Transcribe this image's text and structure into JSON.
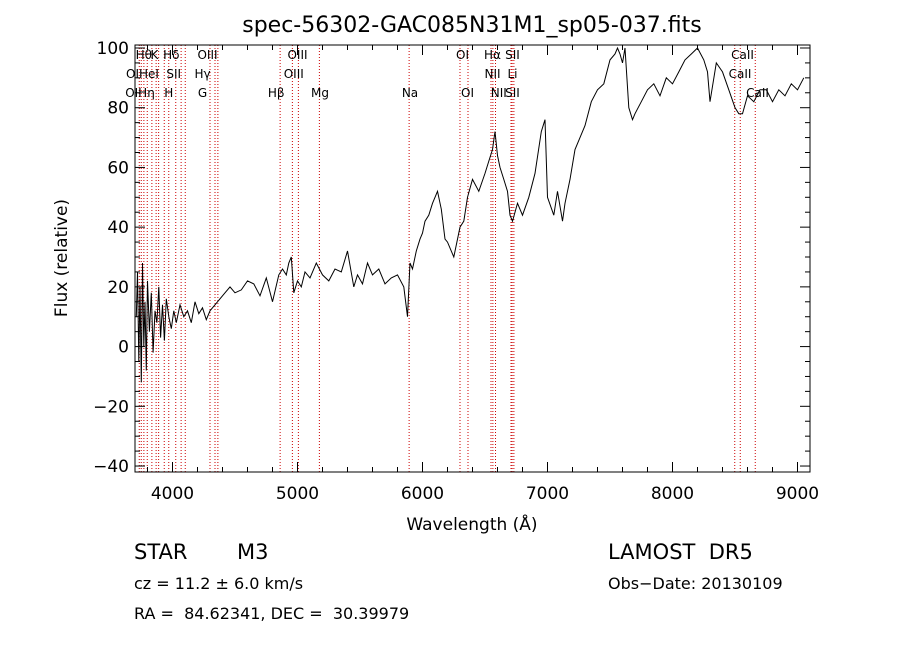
{
  "chart_data": {
    "type": "line",
    "title": "spec-56302-GAC085N31M1_sp05-037.fits",
    "xlabel": "Wavelength (Å)",
    "ylabel": "Flux (relative)",
    "xlim": [
      3700,
      9100
    ],
    "ylim": [
      -42,
      101
    ],
    "xticks": [
      4000,
      5000,
      6000,
      7000,
      8000,
      9000
    ],
    "yticks": [
      -40,
      -20,
      0,
      20,
      40,
      60,
      80,
      100
    ],
    "grid": false,
    "line_color": "#000000",
    "marker_color": "#cc0000",
    "series": [
      {
        "x": [
          3710,
          3720,
          3730,
          3740,
          3750,
          3760,
          3770,
          3780,
          3790,
          3800,
          3815,
          3830,
          3845,
          3860,
          3875,
          3890,
          3905,
          3920,
          3935,
          3950,
          3970,
          3990,
          4010,
          4030,
          4060,
          4090,
          4120,
          4150,
          4180,
          4210,
          4240,
          4270,
          4300,
          4340,
          4380,
          4420,
          4460,
          4500,
          4550,
          4600,
          4650,
          4700,
          4750,
          4800,
          4850,
          4880,
          4910,
          4930,
          4950,
          4970,
          5000,
          5030,
          5060,
          5100,
          5150,
          5200,
          5250,
          5300,
          5350,
          5400,
          5450,
          5480,
          5520,
          5560,
          5600,
          5650,
          5700,
          5750,
          5800,
          5850,
          5880,
          5900,
          5920,
          5950,
          5980,
          6000,
          6020,
          6050,
          6080,
          6100,
          6120,
          6150,
          6180,
          6200,
          6250,
          6300,
          6330,
          6360,
          6400,
          6450,
          6500,
          6530,
          6560,
          6580,
          6600,
          6620,
          6650,
          6680,
          6700,
          6720,
          6760,
          6800,
          6850,
          6900,
          6950,
          6980,
          7000,
          7050,
          7080,
          7120,
          7140,
          7180,
          7220,
          7260,
          7300,
          7350,
          7400,
          7450,
          7500,
          7540,
          7560,
          7580,
          7600,
          7620,
          7650,
          7680,
          7700,
          7750,
          7800,
          7850,
          7900,
          7950,
          8000,
          8050,
          8100,
          8150,
          8200,
          8250,
          8280,
          8300,
          8350,
          8400,
          8450,
          8500,
          8530,
          8560,
          8600,
          8650,
          8700,
          8750,
          8800,
          8850,
          8900,
          8950,
          9000,
          9050
        ],
        "y": [
          10,
          25,
          -5,
          20,
          -12,
          28,
          0,
          15,
          -8,
          22,
          5,
          18,
          -2,
          12,
          8,
          20,
          3,
          14,
          2,
          16,
          10,
          6,
          12,
          8,
          14,
          10,
          12,
          8,
          15,
          11,
          13,
          9,
          12,
          14,
          16,
          18,
          20,
          18,
          19,
          22,
          21,
          17,
          23,
          15,
          24,
          26,
          24,
          28,
          30,
          18,
          22,
          20,
          25,
          23,
          28,
          24,
          22,
          26,
          25,
          32,
          20,
          24,
          21,
          28,
          24,
          26,
          21,
          23,
          24,
          20,
          10,
          28,
          26,
          32,
          36,
          38,
          42,
          44,
          48,
          50,
          52,
          46,
          36,
          35,
          30,
          40,
          42,
          50,
          56,
          52,
          58,
          62,
          66,
          72,
          64,
          60,
          56,
          52,
          44,
          42,
          48,
          44,
          50,
          58,
          72,
          76,
          50,
          44,
          52,
          42,
          48,
          56,
          66,
          70,
          74,
          82,
          86,
          88,
          96,
          98,
          100,
          98,
          95,
          100,
          80,
          76,
          78,
          82,
          86,
          88,
          84,
          90,
          88,
          92,
          96,
          98,
          100,
          96,
          92,
          82,
          95,
          92,
          86,
          80,
          78,
          78,
          84,
          82,
          86,
          86,
          82,
          86,
          84,
          88,
          86,
          90
        ]
      }
    ],
    "line_markers": [
      {
        "x": 3734,
        "label": "OII"
      },
      {
        "x": 3750,
        "label": "Hθ"
      },
      {
        "x": 3771,
        "label": "Hη"
      },
      {
        "x": 3798,
        "label": "Hζ"
      },
      {
        "x": 3835,
        "label": "Hη"
      },
      {
        "x": 3869,
        "label": "HeI"
      },
      {
        "x": 3889,
        "label": "Hζ"
      },
      {
        "x": 3934,
        "label": "K"
      },
      {
        "x": 3970,
        "label": "H"
      },
      {
        "x": 4026,
        "label": "HeI"
      },
      {
        "x": 4069,
        "label": "SII"
      },
      {
        "x": 4102,
        "label": "Hδ"
      },
      {
        "x": 4300,
        "label": "G"
      },
      {
        "x": 4340,
        "label": "Hγ"
      },
      {
        "x": 4363,
        "label": "OIII"
      },
      {
        "x": 4861,
        "label": "Hβ"
      },
      {
        "x": 4959,
        "label": "OIII"
      },
      {
        "x": 5007,
        "label": "OIII"
      },
      {
        "x": 5175,
        "label": "Mg"
      },
      {
        "x": 5893,
        "label": "Na"
      },
      {
        "x": 6300,
        "label": "OI"
      },
      {
        "x": 6364,
        "label": "OI"
      },
      {
        "x": 6548,
        "label": "NII"
      },
      {
        "x": 6563,
        "label": "Hα"
      },
      {
        "x": 6584,
        "label": "NII"
      },
      {
        "x": 6708,
        "label": "Li"
      },
      {
        "x": 6717,
        "label": "SII"
      },
      {
        "x": 6731,
        "label": "SII"
      },
      {
        "x": 8498,
        "label": "CaII"
      },
      {
        "x": 8542,
        "label": "CaII"
      },
      {
        "x": 8662,
        "label": "CaII"
      }
    ],
    "marker_labels": [
      {
        "x": 3770,
        "text": "Hθ"
      },
      {
        "x": 3855,
        "text": "K"
      },
      {
        "x": 3990,
        "text": "Hδ"
      },
      {
        "x": 4280,
        "text": "OIII"
      },
      {
        "x": 5000,
        "text": "OIII"
      },
      {
        "x": 6320,
        "text": "OI"
      },
      {
        "x": 6560,
        "text": "Hα"
      },
      {
        "x": 6720,
        "text": "SII"
      },
      {
        "x": 8560,
        "text": "CaII"
      },
      {
        "x": 3760,
        "text": "OIHeI"
      },
      {
        "x": 4010,
        "text": "SII"
      },
      {
        "x": 4240,
        "text": "Hγ"
      },
      {
        "x": 4970,
        "text": "OIII"
      },
      {
        "x": 6560,
        "text": "NII"
      },
      {
        "x": 6720,
        "text": "Li"
      },
      {
        "x": 8540,
        "text": "CaII"
      },
      {
        "x": 3740,
        "text": "OIHη"
      },
      {
        "x": 3970,
        "text": "H"
      },
      {
        "x": 4240,
        "text": "G"
      },
      {
        "x": 4830,
        "text": "Hβ"
      },
      {
        "x": 5180,
        "text": "Mg"
      },
      {
        "x": 5900,
        "text": "Na"
      },
      {
        "x": 6360,
        "text": "OI"
      },
      {
        "x": 6610,
        "text": "NII"
      },
      {
        "x": 6720,
        "text": "SII"
      },
      {
        "x": 8680,
        "text": "CaII"
      }
    ]
  },
  "info": {
    "object_type": "STAR",
    "subclass": "M3",
    "survey": "LAMOST  DR5",
    "cz": "cz = 11.2 ± 6.0 km/s",
    "obs_date": "Obs−Date: 20130109",
    "coords": "RA =  84.62341, DEC =  30.39979"
  }
}
